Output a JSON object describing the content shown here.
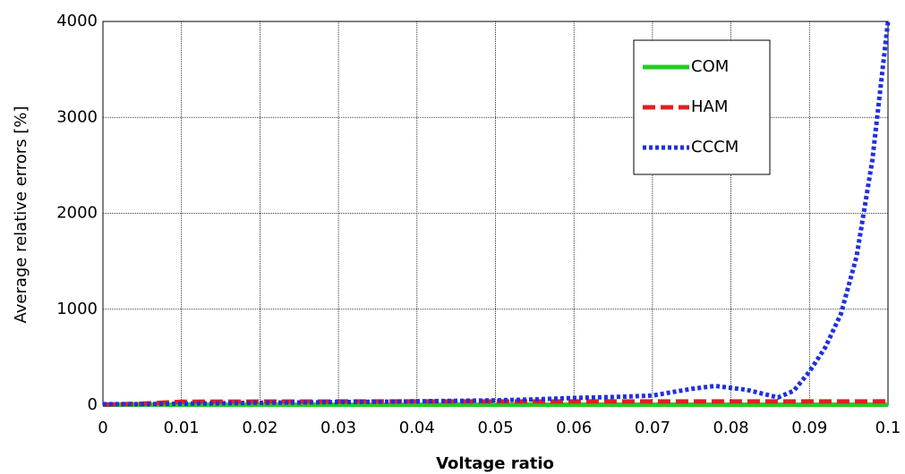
{
  "chart_data": {
    "type": "line",
    "xlabel": "Voltage ratio",
    "ylabel": "Average relative errors [%]",
    "x": [
      0,
      0.005,
      0.01,
      0.015,
      0.02,
      0.025,
      0.03,
      0.035,
      0.04,
      0.045,
      0.05,
      0.055,
      0.06,
      0.065,
      0.07,
      0.075,
      0.078,
      0.082,
      0.086,
      0.088,
      0.09,
      0.092,
      0.094,
      0.096,
      0.098,
      0.1
    ],
    "series": [
      {
        "name": "COM",
        "color": "#22cc22",
        "style": "solid",
        "values": [
          5,
          5,
          5,
          5,
          5,
          5,
          5,
          5,
          5,
          5,
          5,
          5,
          5,
          5,
          5,
          5,
          5,
          5,
          5,
          5,
          5,
          5,
          5,
          5,
          5,
          5
        ]
      },
      {
        "name": "HAM",
        "color": "#e02020",
        "style": "dashed",
        "values": [
          5,
          15,
          35,
          36,
          37,
          37,
          38,
          38,
          38,
          38,
          38,
          38,
          38,
          38,
          38,
          38,
          38,
          38,
          38,
          38,
          38,
          38,
          38,
          38,
          38,
          40
        ]
      },
      {
        "name": "CCCM",
        "color": "#2030e0",
        "style": "dotted",
        "values": [
          10,
          10,
          15,
          20,
          25,
          28,
          32,
          35,
          40,
          45,
          50,
          60,
          75,
          85,
          100,
          170,
          200,
          160,
          80,
          150,
          350,
          600,
          950,
          1550,
          2550,
          4000
        ]
      }
    ],
    "xlim": [
      0,
      0.1
    ],
    "xticks": [
      0,
      0.01,
      0.02,
      0.03,
      0.04,
      0.05,
      0.06,
      0.07,
      0.08,
      0.09,
      0.1
    ],
    "ylim": [
      0,
      4000
    ],
    "yticks": [
      0,
      1000,
      2000,
      3000,
      4000
    ],
    "grid": true,
    "legend": "upper right"
  }
}
